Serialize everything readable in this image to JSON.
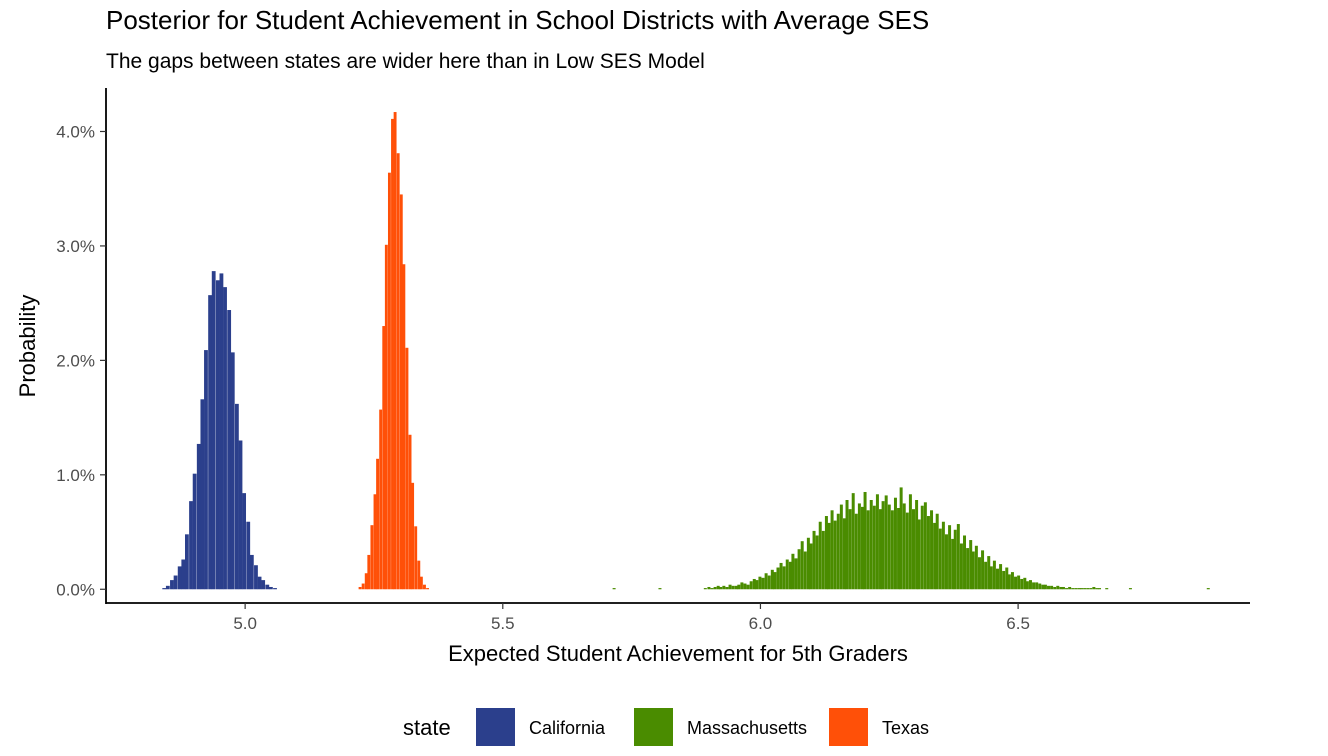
{
  "chart_data": {
    "type": "bar",
    "title": "Posterior for Student Achievement in School Districts with Average SES",
    "subtitle": "The gaps between states are wider here than in Low SES Model",
    "xlabel": "Expected Student Achievement for 5th Graders",
    "ylabel": "Probability",
    "xlim": [
      4.73,
      6.95
    ],
    "ylim": [
      -0.0012,
      0.0438
    ],
    "x_ticks": [
      5.0,
      5.5,
      6.0,
      6.5
    ],
    "x_tick_labels": [
      "5.0",
      "5.5",
      "6.0",
      "6.5"
    ],
    "y_ticks": [
      0.0,
      0.01,
      0.02,
      0.03,
      0.04
    ],
    "y_tick_labels": [
      "0.0%",
      "1.0%",
      "2.0%",
      "3.0%",
      "4.0%"
    ],
    "grid": false,
    "legend": {
      "title": "state",
      "position": "bottom",
      "entries": [
        {
          "label": "California",
          "color": "#2B3F8C"
        },
        {
          "label": "Massachusetts",
          "color": "#4A8C00"
        },
        {
          "label": "Texas",
          "color": "#FF5008"
        }
      ]
    },
    "series": [
      {
        "name": "California",
        "color": "#2B3F8C",
        "bin_width": 0.0074,
        "x": [
          4.843,
          4.85,
          4.858,
          4.865,
          4.873,
          4.88,
          4.887,
          4.895,
          4.902,
          4.91,
          4.917,
          4.924,
          4.932,
          4.939,
          4.947,
          4.954,
          4.961,
          4.969,
          4.976,
          4.984,
          4.991,
          4.998,
          5.006,
          5.013,
          5.021,
          5.028,
          5.035,
          5.043,
          5.05,
          5.058
        ],
        "values": [
          0.0001,
          0.0003,
          0.0008,
          0.0012,
          0.002,
          0.0026,
          0.0048,
          0.0077,
          0.0101,
          0.0127,
          0.0166,
          0.0209,
          0.0257,
          0.0278,
          0.027,
          0.0276,
          0.0264,
          0.0244,
          0.0207,
          0.0162,
          0.013,
          0.0084,
          0.0059,
          0.003,
          0.0021,
          0.0011,
          0.0008,
          0.0004,
          0.0002,
          0.0001
        ]
      },
      {
        "name": "Texas",
        "color": "#FF5008",
        "bin_width": 0.0056,
        "x": [
          5.223,
          5.229,
          5.235,
          5.24,
          5.246,
          5.252,
          5.257,
          5.263,
          5.269,
          5.274,
          5.28,
          5.286,
          5.291,
          5.297,
          5.303,
          5.308,
          5.314,
          5.32,
          5.325,
          5.331,
          5.337,
          5.342,
          5.348,
          5.354
        ],
        "values": [
          0.0002,
          0.0005,
          0.0014,
          0.003,
          0.0056,
          0.0083,
          0.0114,
          0.0157,
          0.023,
          0.0301,
          0.0364,
          0.0411,
          0.0417,
          0.0381,
          0.0345,
          0.0284,
          0.0211,
          0.0135,
          0.0093,
          0.0055,
          0.0025,
          0.0011,
          0.0004,
          0.0001
        ]
      },
      {
        "name": "Massachusetts",
        "color": "#4A8C00",
        "bin_width": 0.0058,
        "x": [
          5.716,
          5.805,
          5.893,
          5.9,
          5.906,
          5.912,
          5.918,
          5.923,
          5.929,
          5.935,
          5.941,
          5.947,
          5.953,
          5.958,
          5.964,
          5.97,
          5.976,
          5.982,
          5.988,
          5.993,
          5.999,
          6.005,
          6.011,
          6.017,
          6.023,
          6.028,
          6.034,
          6.04,
          6.046,
          6.052,
          6.058,
          6.063,
          6.069,
          6.075,
          6.081,
          6.087,
          6.093,
          6.098,
          6.104,
          6.11,
          6.116,
          6.122,
          6.128,
          6.133,
          6.139,
          6.145,
          6.151,
          6.157,
          6.163,
          6.168,
          6.174,
          6.18,
          6.186,
          6.192,
          6.198,
          6.203,
          6.209,
          6.215,
          6.221,
          6.227,
          6.233,
          6.238,
          6.244,
          6.25,
          6.256,
          6.262,
          6.268,
          6.273,
          6.279,
          6.285,
          6.291,
          6.297,
          6.303,
          6.308,
          6.314,
          6.32,
          6.326,
          6.332,
          6.338,
          6.343,
          6.349,
          6.355,
          6.361,
          6.367,
          6.373,
          6.378,
          6.384,
          6.39,
          6.396,
          6.402,
          6.408,
          6.413,
          6.419,
          6.425,
          6.431,
          6.437,
          6.443,
          6.448,
          6.454,
          6.46,
          6.466,
          6.472,
          6.478,
          6.483,
          6.489,
          6.495,
          6.501,
          6.507,
          6.513,
          6.518,
          6.524,
          6.53,
          6.536,
          6.542,
          6.548,
          6.553,
          6.559,
          6.565,
          6.571,
          6.577,
          6.583,
          6.588,
          6.594,
          6.6,
          6.606,
          6.612,
          6.618,
          6.623,
          6.629,
          6.635,
          6.641,
          6.647,
          6.653,
          6.658,
          6.672,
          6.718,
          6.869
        ],
        "values": [
          0.0001,
          0.0001,
          0.0001,
          0.0002,
          0.0001,
          0.0002,
          0.0003,
          0.0002,
          0.0003,
          0.0002,
          0.0004,
          0.0003,
          0.0003,
          0.0004,
          0.0006,
          0.0005,
          0.0004,
          0.0007,
          0.0009,
          0.0008,
          0.0011,
          0.001,
          0.0014,
          0.0012,
          0.0017,
          0.0015,
          0.0019,
          0.0023,
          0.002,
          0.0026,
          0.0024,
          0.0031,
          0.0027,
          0.0035,
          0.0042,
          0.0033,
          0.0045,
          0.004,
          0.0051,
          0.0047,
          0.0059,
          0.0051,
          0.0064,
          0.0058,
          0.0069,
          0.006,
          0.0066,
          0.0074,
          0.0062,
          0.0078,
          0.007,
          0.0084,
          0.0066,
          0.0075,
          0.0072,
          0.0085,
          0.0069,
          0.0078,
          0.0073,
          0.0083,
          0.007,
          0.0077,
          0.0082,
          0.0074,
          0.0069,
          0.008,
          0.0071,
          0.0089,
          0.0075,
          0.0067,
          0.0083,
          0.007,
          0.0078,
          0.0061,
          0.0073,
          0.0076,
          0.0064,
          0.0069,
          0.0058,
          0.0066,
          0.0053,
          0.0059,
          0.0048,
          0.0056,
          0.0044,
          0.0052,
          0.0057,
          0.004,
          0.0047,
          0.0036,
          0.0043,
          0.0033,
          0.0038,
          0.0028,
          0.0034,
          0.0024,
          0.0029,
          0.002,
          0.0025,
          0.0018,
          0.0022,
          0.0016,
          0.0019,
          0.0013,
          0.0015,
          0.0011,
          0.0012,
          0.0009,
          0.001,
          0.0007,
          0.0008,
          0.0006,
          0.0006,
          0.0005,
          0.0004,
          0.0004,
          0.0003,
          0.0003,
          0.0002,
          0.0003,
          0.0002,
          0.0002,
          0.0001,
          0.0002,
          0.0001,
          0.0001,
          0.0001,
          0.0001,
          0.0001,
          0.0001,
          0.0001,
          0.0002,
          0.0001,
          0.0001,
          0.0001,
          0.0001,
          0.0001
        ]
      }
    ]
  }
}
